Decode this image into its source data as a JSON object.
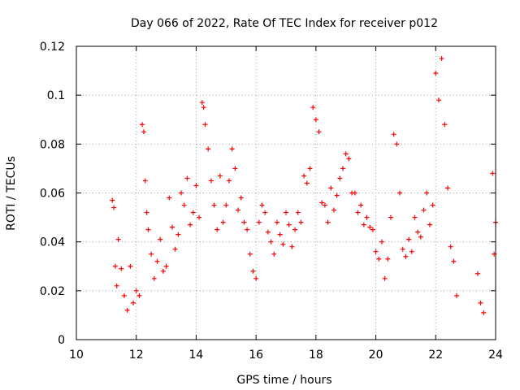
{
  "chart_data": {
    "type": "scatter",
    "title": "Day 066 of 2022, Rate Of TEC Index for receiver p012",
    "xlabel": "GPS time / hours",
    "ylabel": "ROTI / TECUs",
    "xlim": [
      10,
      24
    ],
    "ylim": [
      0,
      0.12
    ],
    "xticks": [
      "10",
      "12",
      "14",
      "16",
      "18",
      "20",
      "22",
      "24"
    ],
    "yticks": [
      "0",
      "0.02",
      "0.04",
      "0.06",
      "0.08",
      "0.1",
      "0.12"
    ],
    "grid": true,
    "marker": "+",
    "color": "#ff0000",
    "series": [
      {
        "x": [
          11.2,
          11.25,
          11.3,
          11.35,
          11.4,
          11.5,
          11.6,
          11.7,
          11.8,
          11.9,
          12.0,
          12.1,
          12.2,
          12.25,
          12.3,
          12.35,
          12.4,
          12.5,
          12.6,
          12.7,
          12.8,
          12.9,
          13.0,
          13.1,
          13.2,
          13.3,
          13.4,
          13.5,
          13.6,
          13.7,
          13.8,
          13.9,
          14.0,
          14.1,
          14.2,
          14.25,
          14.3,
          14.4,
          14.5,
          14.6,
          14.7,
          14.8,
          14.9,
          15.0,
          15.1,
          15.2,
          15.3,
          15.4,
          15.5,
          15.6,
          15.7,
          15.8,
          15.9,
          16.0,
          16.1,
          16.2,
          16.3,
          16.4,
          16.5,
          16.6,
          16.7,
          16.8,
          16.9,
          17.0,
          17.1,
          17.2,
          17.3,
          17.4,
          17.5,
          17.6,
          17.7,
          17.8,
          17.9,
          18.0,
          18.1,
          18.2,
          18.3,
          18.4,
          18.5,
          18.6,
          18.7,
          18.8,
          18.9,
          19.0,
          19.1,
          19.2,
          19.3,
          19.4,
          19.5,
          19.6,
          19.7,
          19.8,
          19.9,
          20.0,
          20.1,
          20.2,
          20.3,
          20.4,
          20.5,
          20.6,
          20.7,
          20.8,
          20.9,
          21.0,
          21.1,
          21.2,
          21.3,
          21.4,
          21.5,
          21.6,
          21.7,
          21.8,
          21.9,
          22.0,
          22.1,
          22.2,
          22.3,
          22.4,
          22.5,
          22.6,
          22.7,
          23.4,
          23.5,
          23.6,
          23.9,
          23.95,
          24.0
        ],
        "y": [
          0.057,
          0.054,
          0.03,
          0.022,
          0.041,
          0.029,
          0.018,
          0.012,
          0.03,
          0.015,
          0.02,
          0.018,
          0.088,
          0.085,
          0.065,
          0.052,
          0.045,
          0.035,
          0.025,
          0.032,
          0.041,
          0.028,
          0.03,
          0.058,
          0.046,
          0.037,
          0.043,
          0.06,
          0.055,
          0.066,
          0.047,
          0.052,
          0.063,
          0.05,
          0.097,
          0.095,
          0.088,
          0.078,
          0.065,
          0.055,
          0.045,
          0.067,
          0.048,
          0.055,
          0.065,
          0.078,
          0.07,
          0.053,
          0.058,
          0.048,
          0.045,
          0.035,
          0.028,
          0.025,
          0.048,
          0.055,
          0.052,
          0.044,
          0.04,
          0.035,
          0.048,
          0.043,
          0.039,
          0.052,
          0.047,
          0.038,
          0.045,
          0.052,
          0.048,
          0.067,
          0.064,
          0.07,
          0.095,
          0.09,
          0.085,
          0.056,
          0.055,
          0.048,
          0.062,
          0.053,
          0.059,
          0.066,
          0.07,
          0.076,
          0.074,
          0.06,
          0.06,
          0.052,
          0.055,
          0.047,
          0.05,
          0.046,
          0.045,
          0.036,
          0.033,
          0.04,
          0.025,
          0.033,
          0.05,
          0.084,
          0.08,
          0.06,
          0.037,
          0.034,
          0.041,
          0.036,
          0.05,
          0.044,
          0.042,
          0.053,
          0.06,
          0.047,
          0.055,
          0.109,
          0.098,
          0.115,
          0.088,
          0.062,
          0.038,
          0.032,
          0.018,
          0.027,
          0.015,
          0.011,
          0.068,
          0.035,
          0.048
        ]
      }
    ]
  }
}
